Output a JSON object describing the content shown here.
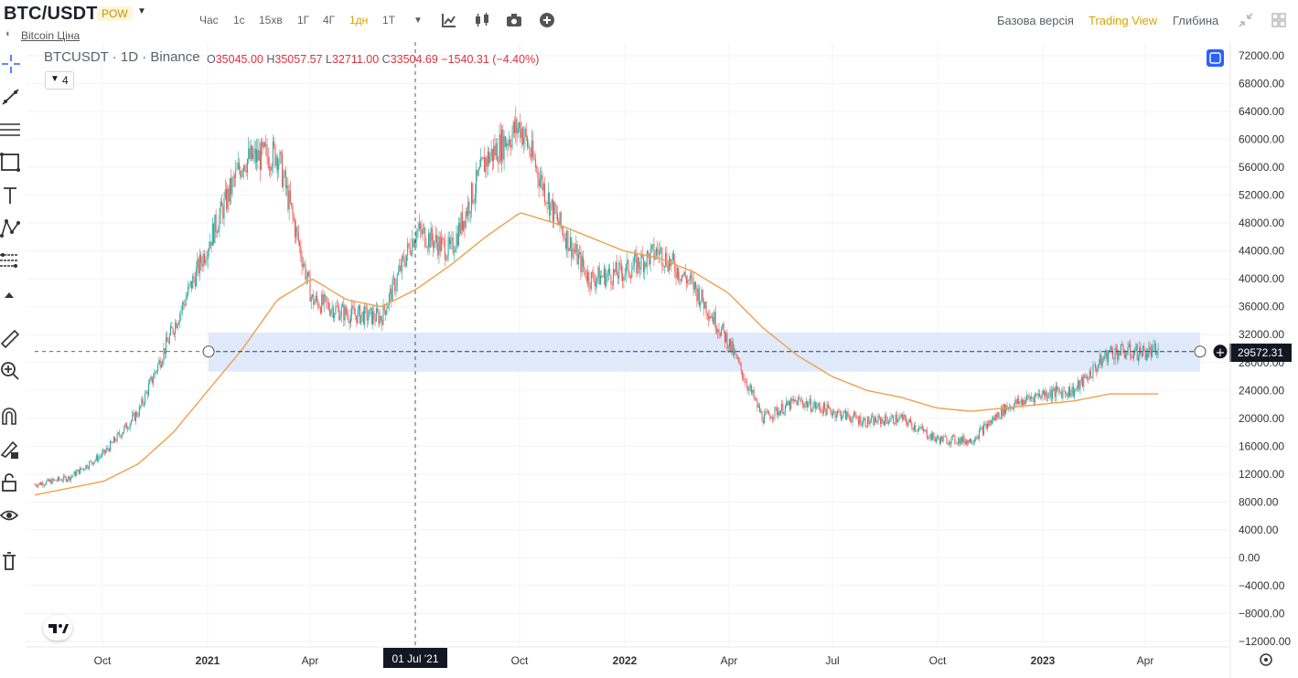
{
  "header": {
    "title": "BTC/USDT",
    "badge": "POW",
    "subtitle_link": "Bitcoin Ціна",
    "timeframes": [
      "Час",
      "1с",
      "15хв",
      "1Г",
      "4Г",
      "1дн",
      "1Т"
    ],
    "active_timeframe": "1дн",
    "right_nav": [
      "Базова версія",
      "Trading View",
      "Глибина"
    ],
    "active_view": "Trading View"
  },
  "legend": {
    "symbol": "BTCUSDT · 1D · Binance",
    "open_label": "O",
    "open": "35045.00",
    "high_label": "H",
    "high": "35057.57",
    "low_label": "L",
    "low": "32711.00",
    "close_label": "C",
    "close": "33504.69",
    "change": "−1540.31 (−4.40%)",
    "indicator_count": "4"
  },
  "crosshair_label": "01 Jul '21",
  "price_label": "29572.31",
  "colors": {
    "up": "#26a69a",
    "down": "#ef5350",
    "ma": "#f0a04b",
    "zone": "#dbe6fa",
    "accent": "#d9a200",
    "price_tag": "#131722"
  },
  "chart_data": {
    "type": "line",
    "title": "BTCUSDT · 1D · Binance",
    "x_ticks": [
      "Oct",
      "2021",
      "Apr",
      "Jul",
      "Oct",
      "2022",
      "Apr",
      "Jul",
      "Oct",
      "2023",
      "Apr"
    ],
    "y_ticks": [
      "72000.00",
      "68000.00",
      "64000.00",
      "60000.00",
      "56000.00",
      "52000.00",
      "48000.00",
      "44000.00",
      "40000.00",
      "36000.00",
      "32000.00",
      "28000.00",
      "24000.00",
      "20000.00",
      "16000.00",
      "12000.00",
      "8000.00",
      "4000.00",
      "0.00",
      "−4000.00",
      "−8000.00",
      "−12000.00"
    ],
    "ylim": [
      -12000,
      72000
    ],
    "x": [
      "2020-09",
      "2020-10",
      "2020-11",
      "2020-12",
      "2021-01",
      "2021-02",
      "2021-03",
      "2021-04",
      "2021-05",
      "2021-06",
      "2021-07",
      "2021-08",
      "2021-09",
      "2021-10",
      "2021-11",
      "2021-12",
      "2022-01",
      "2022-02",
      "2022-03",
      "2022-04",
      "2022-05",
      "2022-06",
      "2022-07",
      "2022-08",
      "2022-09",
      "2022-10",
      "2022-11",
      "2022-12",
      "2023-01",
      "2023-02",
      "2023-03",
      "2023-04"
    ],
    "series": [
      {
        "values": [
          10500,
          11500,
          15000,
          21000,
          33000,
          45000,
          57000,
          58000,
          37000,
          35000,
          34500,
          47000,
          44000,
          57000,
          62000,
          49000,
          40000,
          41000,
          44000,
          39000,
          31000,
          20000,
          22500,
          21000,
          19500,
          20000,
          17000,
          16800,
          21500,
          23500,
          24000,
          29500
        ]
      },
      {
        "values": [
          9000,
          10000,
          11000,
          13500,
          18000,
          24000,
          30000,
          37000,
          40000,
          37000,
          36000,
          38500,
          42000,
          46000,
          49500,
          48000,
          46000,
          44000,
          43000,
          41000,
          38000,
          33000,
          29000,
          26000,
          24000,
          23000,
          21500,
          21000,
          21500,
          22000,
          22500,
          23500
        ]
      }
    ],
    "zone_price_range": [
      26700,
      32300
    ],
    "hline_price": 29572.31,
    "crosshair_x": "2021-07-01"
  }
}
